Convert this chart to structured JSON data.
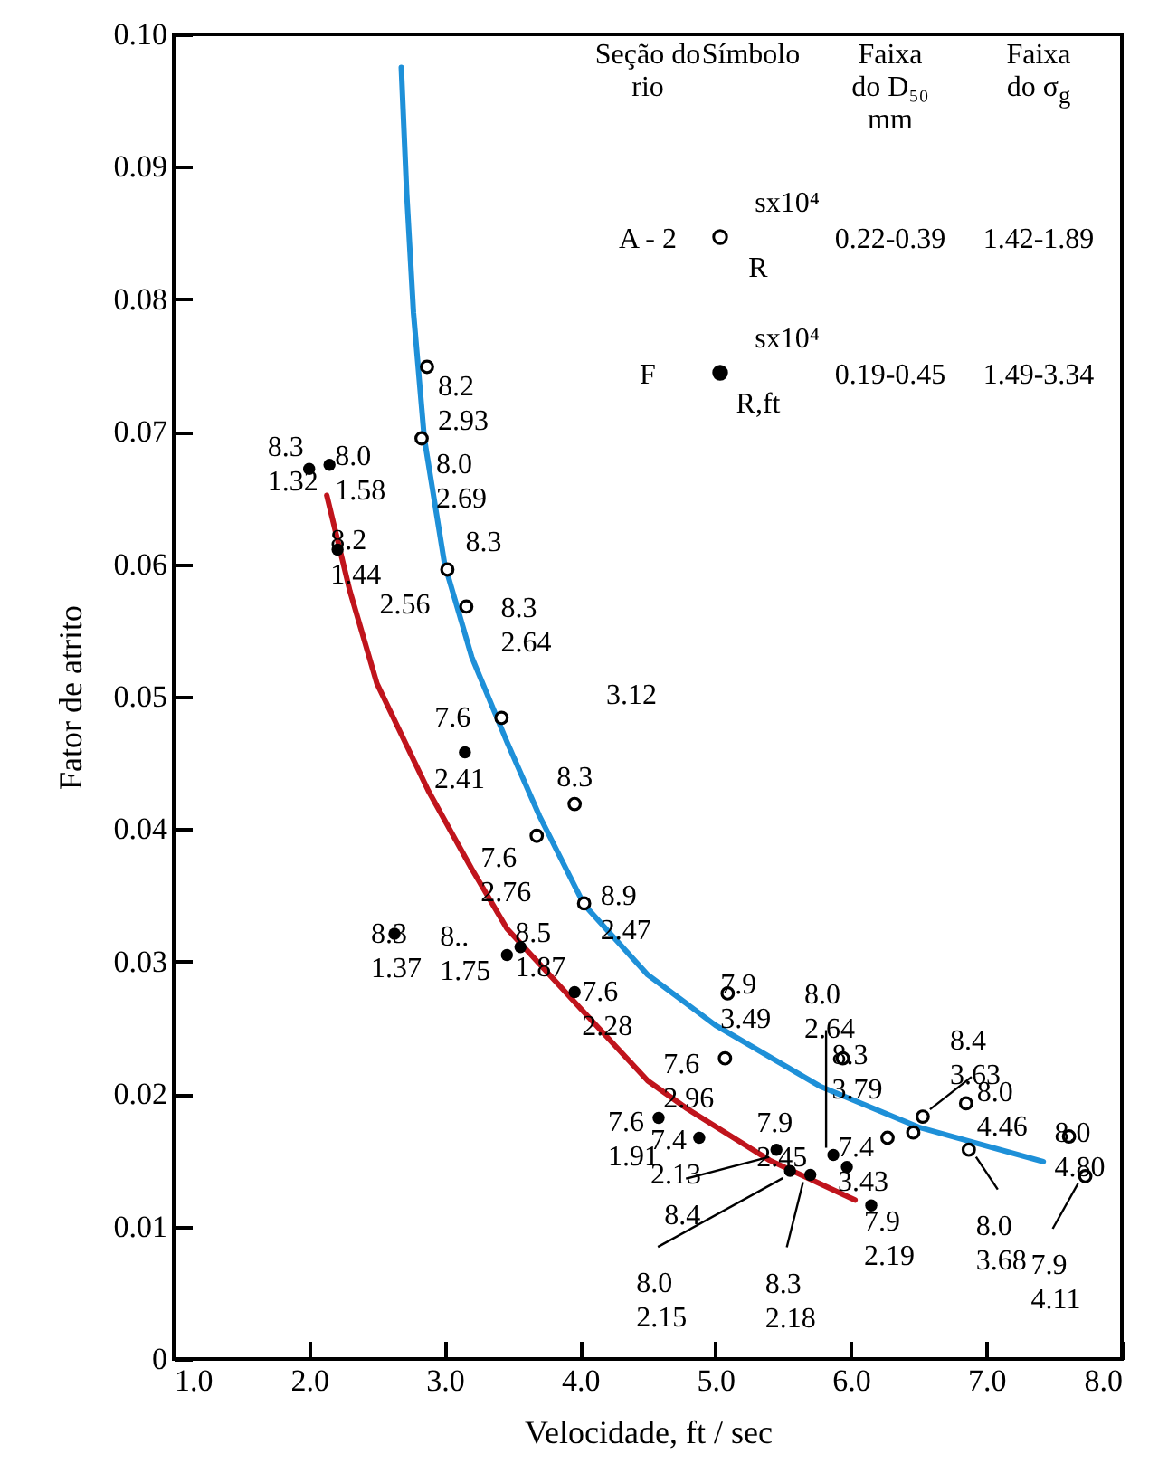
{
  "chart_data": {
    "type": "scatter",
    "xlabel": "Velocidade, ft / sec",
    "ylabel": "Fator de atrito",
    "xlim": [
      1,
      8
    ],
    "xticks": [
      {
        "value": 1,
        "label": "1.0"
      },
      {
        "value": 2,
        "label": "2.0"
      },
      {
        "value": 3,
        "label": "3.0"
      },
      {
        "value": 4,
        "label": "4.0"
      },
      {
        "value": 5,
        "label": "5.0"
      },
      {
        "value": 6,
        "label": "6.0"
      },
      {
        "value": 7,
        "label": "7.0"
      },
      {
        "value": 8,
        "label": "8.0"
      }
    ],
    "ylim": [
      0,
      0.1
    ],
    "yticks": [
      0,
      0.01,
      0.02,
      0.03,
      0.04,
      0.05,
      0.06,
      0.07,
      0.08,
      0.09,
      {
        "value": 0.1,
        "label": "0.10"
      }
    ],
    "grid": false,
    "legend": "top right",
    "marker": "circle",
    "series": [
      {
        "name": "A - 2",
        "color": "#000000",
        "x": [
          2.87,
          2.83,
          3.02,
          3.16,
          3.42,
          3.96,
          3.68,
          4.03,
          5.09,
          5.07,
          5.94,
          6.53,
          6.85,
          6.27,
          6.46,
          6.87,
          7.61,
          7.73
        ],
        "values": [
          0.0749,
          0.0695,
          0.0596,
          0.0568,
          0.0484,
          0.0419,
          0.0395,
          0.0344,
          0.0276,
          0.0227,
          0.0227,
          0.0183,
          0.0193,
          0.0167,
          0.0171,
          0.0158,
          0.0168,
          0.0138
        ]
      },
      {
        "name": "F",
        "color": "#000000",
        "x": [
          2.0,
          2.15,
          2.21,
          3.15,
          2.63,
          3.46,
          3.56,
          3.96,
          4.58,
          4.88,
          5.45,
          5.55,
          5.7,
          5.87,
          5.97,
          6.15
        ],
        "values": [
          0.0672,
          0.0675,
          0.0611,
          0.0458,
          0.0321,
          0.0305,
          0.0311,
          0.0277,
          0.0182,
          0.0167,
          0.0158,
          0.0142,
          0.0139,
          0.0154,
          0.0145,
          0.0116
        ]
      },
      {
        "type": "line",
        "marker": "none",
        "color": "#1e90d8",
        "x": [
          2.68,
          2.72,
          2.77,
          2.85,
          3.0,
          3.2,
          3.46,
          3.7,
          4.03,
          4.5,
          5.0,
          5.77,
          6.5,
          7.42
        ],
        "values": [
          0.0975,
          0.088,
          0.079,
          0.0695,
          0.06,
          0.053,
          0.0466,
          0.041,
          0.0343,
          0.029,
          0.0252,
          0.0206,
          0.0175,
          0.0149
        ]
      },
      {
        "type": "line",
        "marker": "none",
        "color": "#c0141c",
        "x": [
          2.13,
          2.3,
          2.5,
          2.88,
          3.2,
          3.46,
          4.0,
          4.5,
          4.79,
          5.4,
          6.03
        ],
        "values": [
          0.0652,
          0.058,
          0.051,
          0.0429,
          0.037,
          0.0325,
          0.0265,
          0.021,
          0.0189,
          0.015,
          0.012
        ]
      }
    ],
    "annotations": [
      "Seção do rio",
      "Símbolo",
      "Faixa do D₅₀ mm",
      "Faixa do σ$_{g}$",
      "sx10⁴",
      "R",
      "0.22-0.39",
      "1.42-1.89",
      "sx10⁴",
      "R,ft",
      "0.19-0.45",
      "1.49-3.34",
      "3.12",
      {
        "text": "8.2\n2.93",
        "x": 2.87,
        "y": 0.0749
      },
      {
        "text": "8.0\n2.69",
        "x": 2.83,
        "y": 0.0695
      },
      {
        "text": "8.3",
        "x": 3.02,
        "y": 0.0596
      },
      {
        "text": "8.3\n2.64",
        "x": 3.16,
        "y": 0.0568
      },
      {
        "text": "2.56",
        "x": 3.16,
        "y": 0.0568
      },
      {
        "text": "7.6",
        "x": 3.42,
        "y": 0.0484
      },
      {
        "text": "8.3",
        "x": 3.96,
        "y": 0.0419
      },
      {
        "text": "7.6\n2.76",
        "x": 3.68,
        "y": 0.0395
      },
      {
        "text": "8.9\n2.47",
        "x": 4.03,
        "y": 0.0344
      },
      {
        "text": "7.9\n3.49",
        "x": 5.09,
        "y": 0.0276
      },
      {
        "text": "7.6\n2.96",
        "x": 5.07,
        "y": 0.0227
      },
      {
        "text": "8.3\n3.79",
        "x": 5.94,
        "y": 0.0227
      },
      {
        "text": "8.4\n3.63",
        "x": 6.53,
        "y": 0.0183
      },
      {
        "text": "8.0\n4.46",
        "x": 6.85,
        "y": 0.0193
      },
      {
        "text": "8.0\n3.68",
        "x": 6.87,
        "y": 0.0158
      },
      {
        "text": "8.0\n4.80",
        "x": 7.61,
        "y": 0.0168
      },
      {
        "text": "7.9\n4.11",
        "x": 7.73,
        "y": 0.0138
      },
      {
        "text": "8.3\n1.32",
        "x": 2.0,
        "y": 0.0672
      },
      {
        "text": "8.0\n1.58",
        "x": 2.15,
        "y": 0.0675
      },
      {
        "text": "8.2\n1.44",
        "x": 2.21,
        "y": 0.0611
      },
      {
        "text": "2.41",
        "x": 3.15,
        "y": 0.0458
      },
      {
        "text": "8.3\n1.37",
        "x": 2.63,
        "y": 0.0321
      },
      {
        "text": "8..\n1.75",
        "x": 3.46,
        "y": 0.0305
      },
      {
        "text": "8.5\n1.87",
        "x": 3.56,
        "y": 0.0311
      },
      {
        "text": "7.6\n2.28",
        "x": 3.96,
        "y": 0.0277
      },
      {
        "text": "7.6\n1.91",
        "x": 4.58,
        "y": 0.0182
      },
      {
        "text": "7.4\n2.13",
        "x": 4.88,
        "y": 0.0167
      },
      {
        "text": "7.9\n2.45",
        "x": 5.45,
        "y": 0.0158
      },
      {
        "text": "8.0\n2.15",
        "x": 5.55,
        "y": 0.0142
      },
      {
        "text": "8.3\n2.18",
        "x": 5.7,
        "y": 0.0139
      },
      {
        "text": "8.0\n2.64",
        "x": 5.87,
        "y": 0.0154
      },
      {
        "text": "7.4\n3.43",
        "x": 5.97,
        "y": 0.0145
      },
      {
        "text": "7.9\n2.19",
        "x": 6.15,
        "y": 0.0116
      },
      {
        "text": "8.4",
        "x": 5.45,
        "y": 0.0158
      }
    ]
  }
}
